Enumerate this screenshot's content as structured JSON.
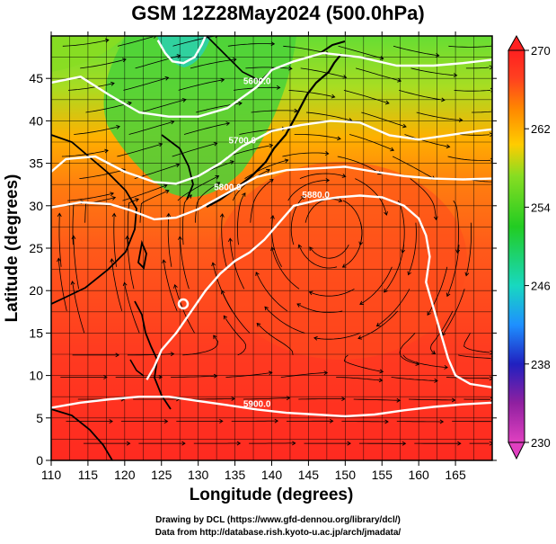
{
  "title": "GSM 12Z28May2024 (500.0hPa)",
  "xlabel": "Longitude (degrees)",
  "ylabel": "Latitude (degrees)",
  "x_ticks": [
    110,
    115,
    120,
    125,
    130,
    135,
    140,
    145,
    150,
    155,
    160,
    165
  ],
  "y_ticks": [
    0,
    5,
    10,
    15,
    20,
    25,
    30,
    35,
    40,
    45
  ],
  "x_range": [
    110,
    170
  ],
  "y_range": [
    0,
    50
  ],
  "colorbar": {
    "min": 230,
    "max": 270,
    "labels": [
      230,
      238,
      246,
      254,
      262,
      270
    ],
    "colors": [
      "#e040c0",
      "#9020a0",
      "#2020c0",
      "#1e90ff",
      "#18d8c0",
      "#22cc22",
      "#88dd22",
      "#ffcc00",
      "#ff8800",
      "#ff4020",
      "#ff2020"
    ]
  },
  "contours": [
    {
      "label": "5600.0",
      "points": [
        [
          110,
          44.5
        ],
        [
          114,
          45.2
        ],
        [
          118,
          43
        ],
        [
          122,
          41
        ],
        [
          126,
          40.5
        ],
        [
          130,
          40.5
        ],
        [
          134,
          41.5
        ],
        [
          138,
          44
        ],
        [
          140,
          46
        ],
        [
          143,
          47
        ],
        [
          147,
          48
        ],
        [
          152,
          47.5
        ],
        [
          157,
          46.5
        ],
        [
          162,
          46.5
        ],
        [
          166,
          46.8
        ],
        [
          170,
          47.2
        ]
      ]
    },
    {
      "label": "5700.0",
      "points": [
        [
          110,
          34
        ],
        [
          112,
          35.5
        ],
        [
          116,
          35.8
        ],
        [
          120,
          34
        ],
        [
          124,
          32.8
        ],
        [
          127,
          32.6
        ],
        [
          130,
          33.5
        ],
        [
          133,
          35
        ],
        [
          136,
          37
        ],
        [
          140,
          38.8
        ],
        [
          144,
          39.5
        ],
        [
          148,
          40
        ],
        [
          152,
          39.8
        ],
        [
          156,
          38.3
        ],
        [
          160,
          37.8
        ],
        [
          164,
          38.3
        ],
        [
          168,
          38.8
        ],
        [
          170,
          39
        ]
      ]
    },
    {
      "label": "5800.0",
      "points": [
        [
          110,
          29.8
        ],
        [
          114,
          30.4
        ],
        [
          118,
          30.2
        ],
        [
          121,
          29.4
        ],
        [
          124,
          28.4
        ],
        [
          127,
          28.6
        ],
        [
          130,
          29.6
        ],
        [
          134,
          31.5
        ],
        [
          138,
          33.4
        ],
        [
          142,
          34.2
        ],
        [
          146,
          34.4
        ],
        [
          150,
          34.6
        ],
        [
          154,
          34
        ],
        [
          158,
          33.5
        ],
        [
          162,
          33.2
        ],
        [
          166,
          33.1
        ],
        [
          170,
          33.2
        ]
      ]
    },
    {
      "label": "5880.0",
      "points": [
        [
          123,
          9.5
        ],
        [
          124,
          11
        ],
        [
          125,
          13
        ],
        [
          127,
          15
        ],
        [
          129,
          17.5
        ],
        [
          131,
          20
        ],
        [
          133,
          22
        ],
        [
          135,
          23.5
        ],
        [
          137,
          24.5
        ],
        [
          139,
          26
        ],
        [
          141,
          28
        ],
        [
          143,
          30
        ],
        [
          146,
          30.6
        ],
        [
          149,
          31
        ],
        [
          152,
          31.2
        ],
        [
          155,
          31
        ],
        [
          158,
          30
        ],
        [
          160,
          28.5
        ],
        [
          161,
          26.5
        ],
        [
          161.5,
          24
        ],
        [
          161,
          21
        ],
        [
          162,
          18
        ],
        [
          163,
          15
        ],
        [
          164,
          12
        ],
        [
          165,
          10
        ],
        [
          167,
          9
        ],
        [
          170,
          8.6
        ]
      ]
    },
    {
      "label": "5900.0",
      "points": [
        [
          110,
          6.2
        ],
        [
          114,
          6.8
        ],
        [
          118,
          7.2
        ],
        [
          122,
          7.5
        ],
        [
          126,
          7.5
        ],
        [
          130,
          7
        ],
        [
          134,
          6.5
        ],
        [
          138,
          6
        ],
        [
          142,
          5.6
        ],
        [
          146,
          5.4
        ],
        [
          150,
          5.2
        ],
        [
          154,
          5.4
        ],
        [
          158,
          5.9
        ],
        [
          162,
          6.3
        ],
        [
          166,
          6.6
        ],
        [
          170,
          6.8
        ]
      ]
    },
    {
      "label": "",
      "points": [
        [
          124.5,
          49.5
        ],
        [
          125.5,
          48
        ],
        [
          126.5,
          47
        ],
        [
          128,
          46.8
        ],
        [
          129.5,
          47.5
        ],
        [
          130.5,
          49
        ],
        [
          131,
          50
        ]
      ]
    }
  ],
  "credits": [
    "Drawing by DCL (https://www.gfd-dennou.org/library/dcl/)",
    "Data from http://database.rish.kyoto-u.ac.jp/arch/jmadata/"
  ]
}
